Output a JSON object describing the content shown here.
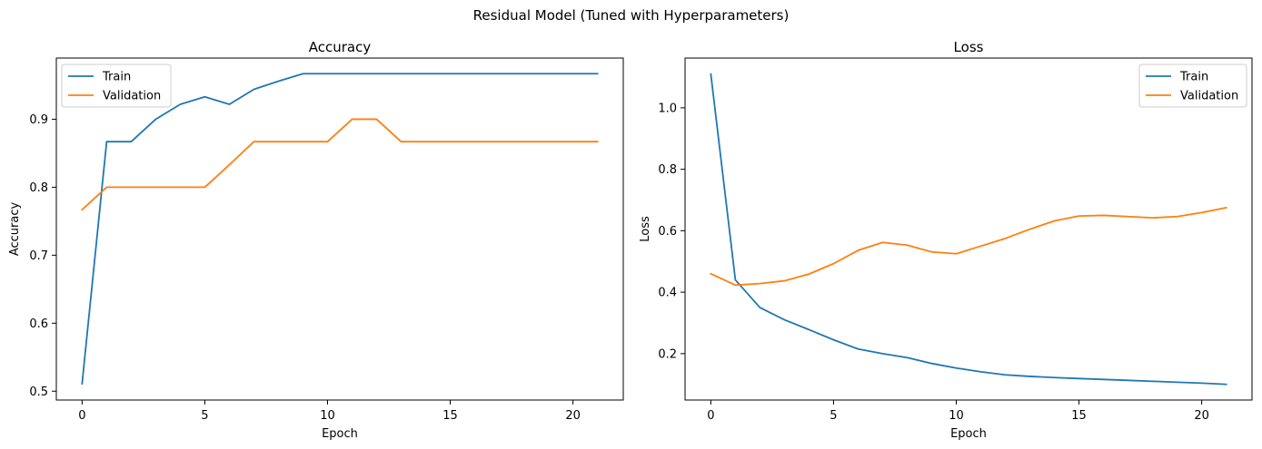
{
  "figure": {
    "suptitle": "Residual Model (Tuned with Hyperparameters)"
  },
  "colors": {
    "train": "#1f77b4",
    "validation": "#ff7f0e"
  },
  "chart_data": [
    {
      "type": "line",
      "title": "Accuracy",
      "xlabel": "Epoch",
      "ylabel": "Accuracy",
      "xlim": [
        -1.05,
        22.05
      ],
      "ylim": [
        0.487,
        0.99
      ],
      "xticks": [
        0,
        5,
        10,
        15,
        20
      ],
      "yticks": [
        0.5,
        0.6,
        0.7,
        0.8,
        0.9
      ],
      "ytick_labels": [
        "0.5",
        "0.6",
        "0.7",
        "0.8",
        "0.9"
      ],
      "legend_position": "upper-left",
      "x": [
        0,
        1,
        2,
        3,
        4,
        5,
        6,
        7,
        8,
        9,
        10,
        11,
        12,
        13,
        14,
        15,
        16,
        17,
        18,
        19,
        20,
        21
      ],
      "series": [
        {
          "name": "Train",
          "color": "#1f77b4",
          "values": [
            0.511,
            0.867,
            0.867,
            0.9,
            0.922,
            0.933,
            0.922,
            0.944,
            0.956,
            0.967,
            0.967,
            0.967,
            0.967,
            0.967,
            0.967,
            0.967,
            0.967,
            0.967,
            0.967,
            0.967,
            0.967,
            0.967
          ]
        },
        {
          "name": "Validation",
          "color": "#ff7f0e",
          "values": [
            0.767,
            0.8,
            0.8,
            0.8,
            0.8,
            0.8,
            0.833,
            0.867,
            0.867,
            0.867,
            0.867,
            0.9,
            0.9,
            0.867,
            0.867,
            0.867,
            0.867,
            0.867,
            0.867,
            0.867,
            0.867,
            0.867
          ]
        }
      ]
    },
    {
      "type": "line",
      "title": "Loss",
      "xlabel": "Epoch",
      "ylabel": "Loss",
      "xlim": [
        -1.05,
        22.05
      ],
      "ylim": [
        0.049,
        1.162
      ],
      "xticks": [
        0,
        5,
        10,
        15,
        20
      ],
      "yticks": [
        0.2,
        0.4,
        0.6,
        0.8,
        1.0
      ],
      "ytick_labels": [
        "0.2",
        "0.4",
        "0.6",
        "0.8",
        "1.0"
      ],
      "legend_position": "upper-right",
      "x": [
        0,
        1,
        2,
        3,
        4,
        5,
        6,
        7,
        8,
        9,
        10,
        11,
        12,
        13,
        14,
        15,
        16,
        17,
        18,
        19,
        20,
        21
      ],
      "series": [
        {
          "name": "Train",
          "color": "#1f77b4",
          "values": [
            1.11,
            0.44,
            0.35,
            0.31,
            0.278,
            0.245,
            0.215,
            0.2,
            0.187,
            0.168,
            0.153,
            0.141,
            0.131,
            0.126,
            0.122,
            0.119,
            0.116,
            0.113,
            0.11,
            0.107,
            0.104,
            0.1
          ]
        },
        {
          "name": "Validation",
          "color": "#ff7f0e",
          "values": [
            0.46,
            0.423,
            0.428,
            0.437,
            0.459,
            0.493,
            0.536,
            0.562,
            0.553,
            0.531,
            0.525,
            0.55,
            0.575,
            0.605,
            0.632,
            0.648,
            0.65,
            0.646,
            0.642,
            0.646,
            0.659,
            0.675
          ]
        }
      ]
    }
  ]
}
